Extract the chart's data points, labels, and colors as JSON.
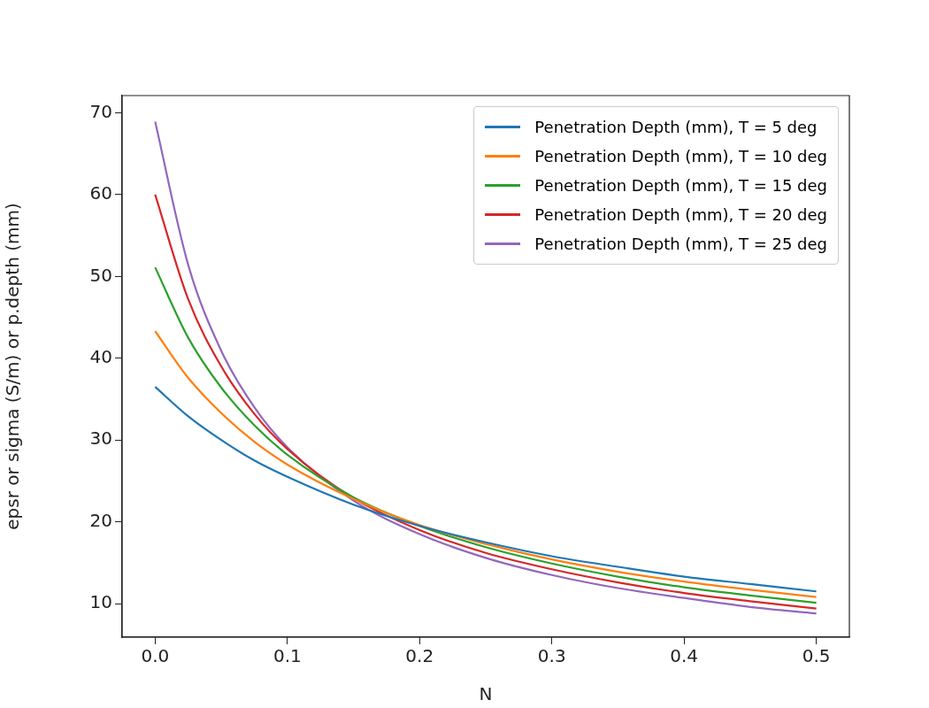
{
  "chart_data": {
    "type": "line",
    "xlabel": "N",
    "ylabel": "epsr or sigma (S/m) or p.depth (mm)",
    "x": [
      0,
      0.025,
      0.05,
      0.075,
      0.1,
      0.15,
      0.2,
      0.25,
      0.3,
      0.35,
      0.4,
      0.45,
      0.5
    ],
    "series": [
      {
        "name": "Penetration Depth (mm), T = 5 deg",
        "color": "#1f77b4",
        "values": [
          36.5,
          32.9,
          30.0,
          27.5,
          25.5,
          22.1,
          19.5,
          17.5,
          15.8,
          14.5,
          13.3,
          12.4,
          11.5
        ]
      },
      {
        "name": "Penetration Depth (mm), T = 10 deg",
        "color": "#ff7f0e",
        "values": [
          43.3,
          37.6,
          33.3,
          29.8,
          27.0,
          22.8,
          19.6,
          17.3,
          15.4,
          13.9,
          12.7,
          11.7,
          10.8
        ]
      },
      {
        "name": "Penetration Depth (mm), T = 15 deg",
        "color": "#2ca02c",
        "values": [
          51.1,
          42.5,
          36.4,
          31.8,
          28.2,
          23.0,
          19.5,
          16.9,
          14.9,
          13.3,
          12.0,
          11.0,
          10.1
        ]
      },
      {
        "name": "Penetration Depth (mm), T = 20 deg",
        "color": "#d62728",
        "values": [
          60.0,
          47.2,
          39.0,
          33.2,
          28.9,
          22.9,
          19.0,
          16.2,
          14.2,
          12.6,
          11.3,
          10.3,
          9.4
        ]
      },
      {
        "name": "Penetration Depth (mm), T = 25 deg",
        "color": "#9467bd",
        "values": [
          68.9,
          51.4,
          40.9,
          34.0,
          29.1,
          22.6,
          18.5,
          15.6,
          13.5,
          11.9,
          10.7,
          9.6,
          8.8
        ]
      }
    ],
    "xlim": [
      -0.025,
      0.525
    ],
    "xticks": [
      {
        "value": 0,
        "label": "0.0"
      },
      {
        "value": 0.1,
        "label": "0.1"
      },
      {
        "value": 0.2,
        "label": "0.2"
      },
      {
        "value": 0.3,
        "label": "0.3"
      },
      {
        "value": 0.4,
        "label": "0.4"
      },
      {
        "value": 0.5,
        "label": "0.5"
      }
    ],
    "ylim": [
      5.9,
      72.1
    ],
    "yticks": [
      10,
      20,
      30,
      40,
      50,
      60,
      70
    ],
    "grid": false,
    "legend": "top right"
  }
}
